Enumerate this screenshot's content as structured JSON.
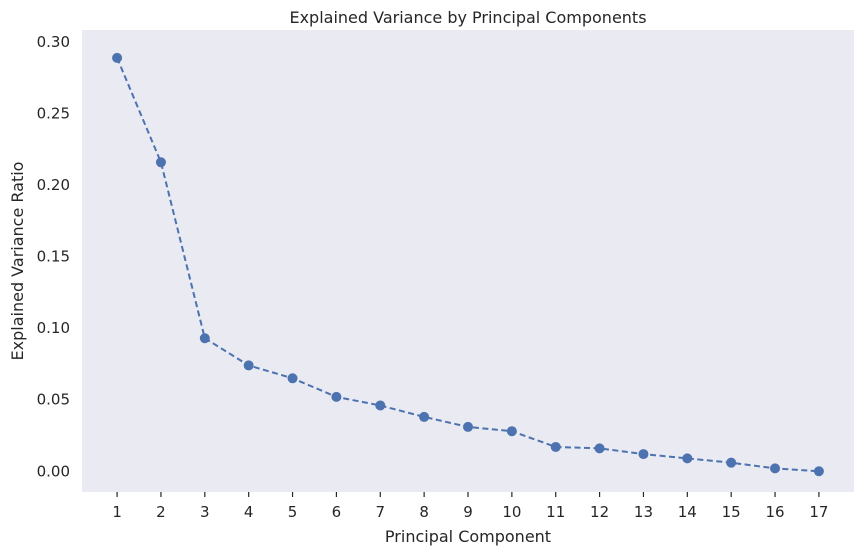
{
  "chart_data": {
    "type": "line",
    "title": "Explained Variance by Principal Components",
    "xlabel": "Principal Component",
    "ylabel": "Explained Variance Ratio",
    "x": [
      1,
      2,
      3,
      4,
      5,
      6,
      7,
      8,
      9,
      10,
      11,
      12,
      13,
      14,
      15,
      16,
      17
    ],
    "x_tick_labels": [
      "1",
      "2",
      "3",
      "4",
      "5",
      "6",
      "7",
      "8",
      "9",
      "10",
      "11",
      "12",
      "13",
      "14",
      "15",
      "16",
      "17"
    ],
    "y_ticks": [
      0.0,
      0.05,
      0.1,
      0.15,
      0.2,
      0.25,
      0.3
    ],
    "y_tick_labels": [
      "0.00",
      "0.05",
      "0.10",
      "0.15",
      "0.20",
      "0.25",
      "0.30"
    ],
    "series": [
      {
        "values": [
          0.289,
          0.216,
          0.093,
          0.074,
          0.065,
          0.052,
          0.046,
          0.038,
          0.031,
          0.028,
          0.017,
          0.016,
          0.012,
          0.009,
          0.006,
          0.002,
          0.0
        ],
        "color": "#4c72b0",
        "linestyle": "dashed",
        "marker": "circle"
      }
    ],
    "xlim": [
      0.2,
      17.8
    ],
    "ylim": [
      -0.0145,
      0.3085
    ],
    "grid": false,
    "background": "#eaeaf2"
  }
}
